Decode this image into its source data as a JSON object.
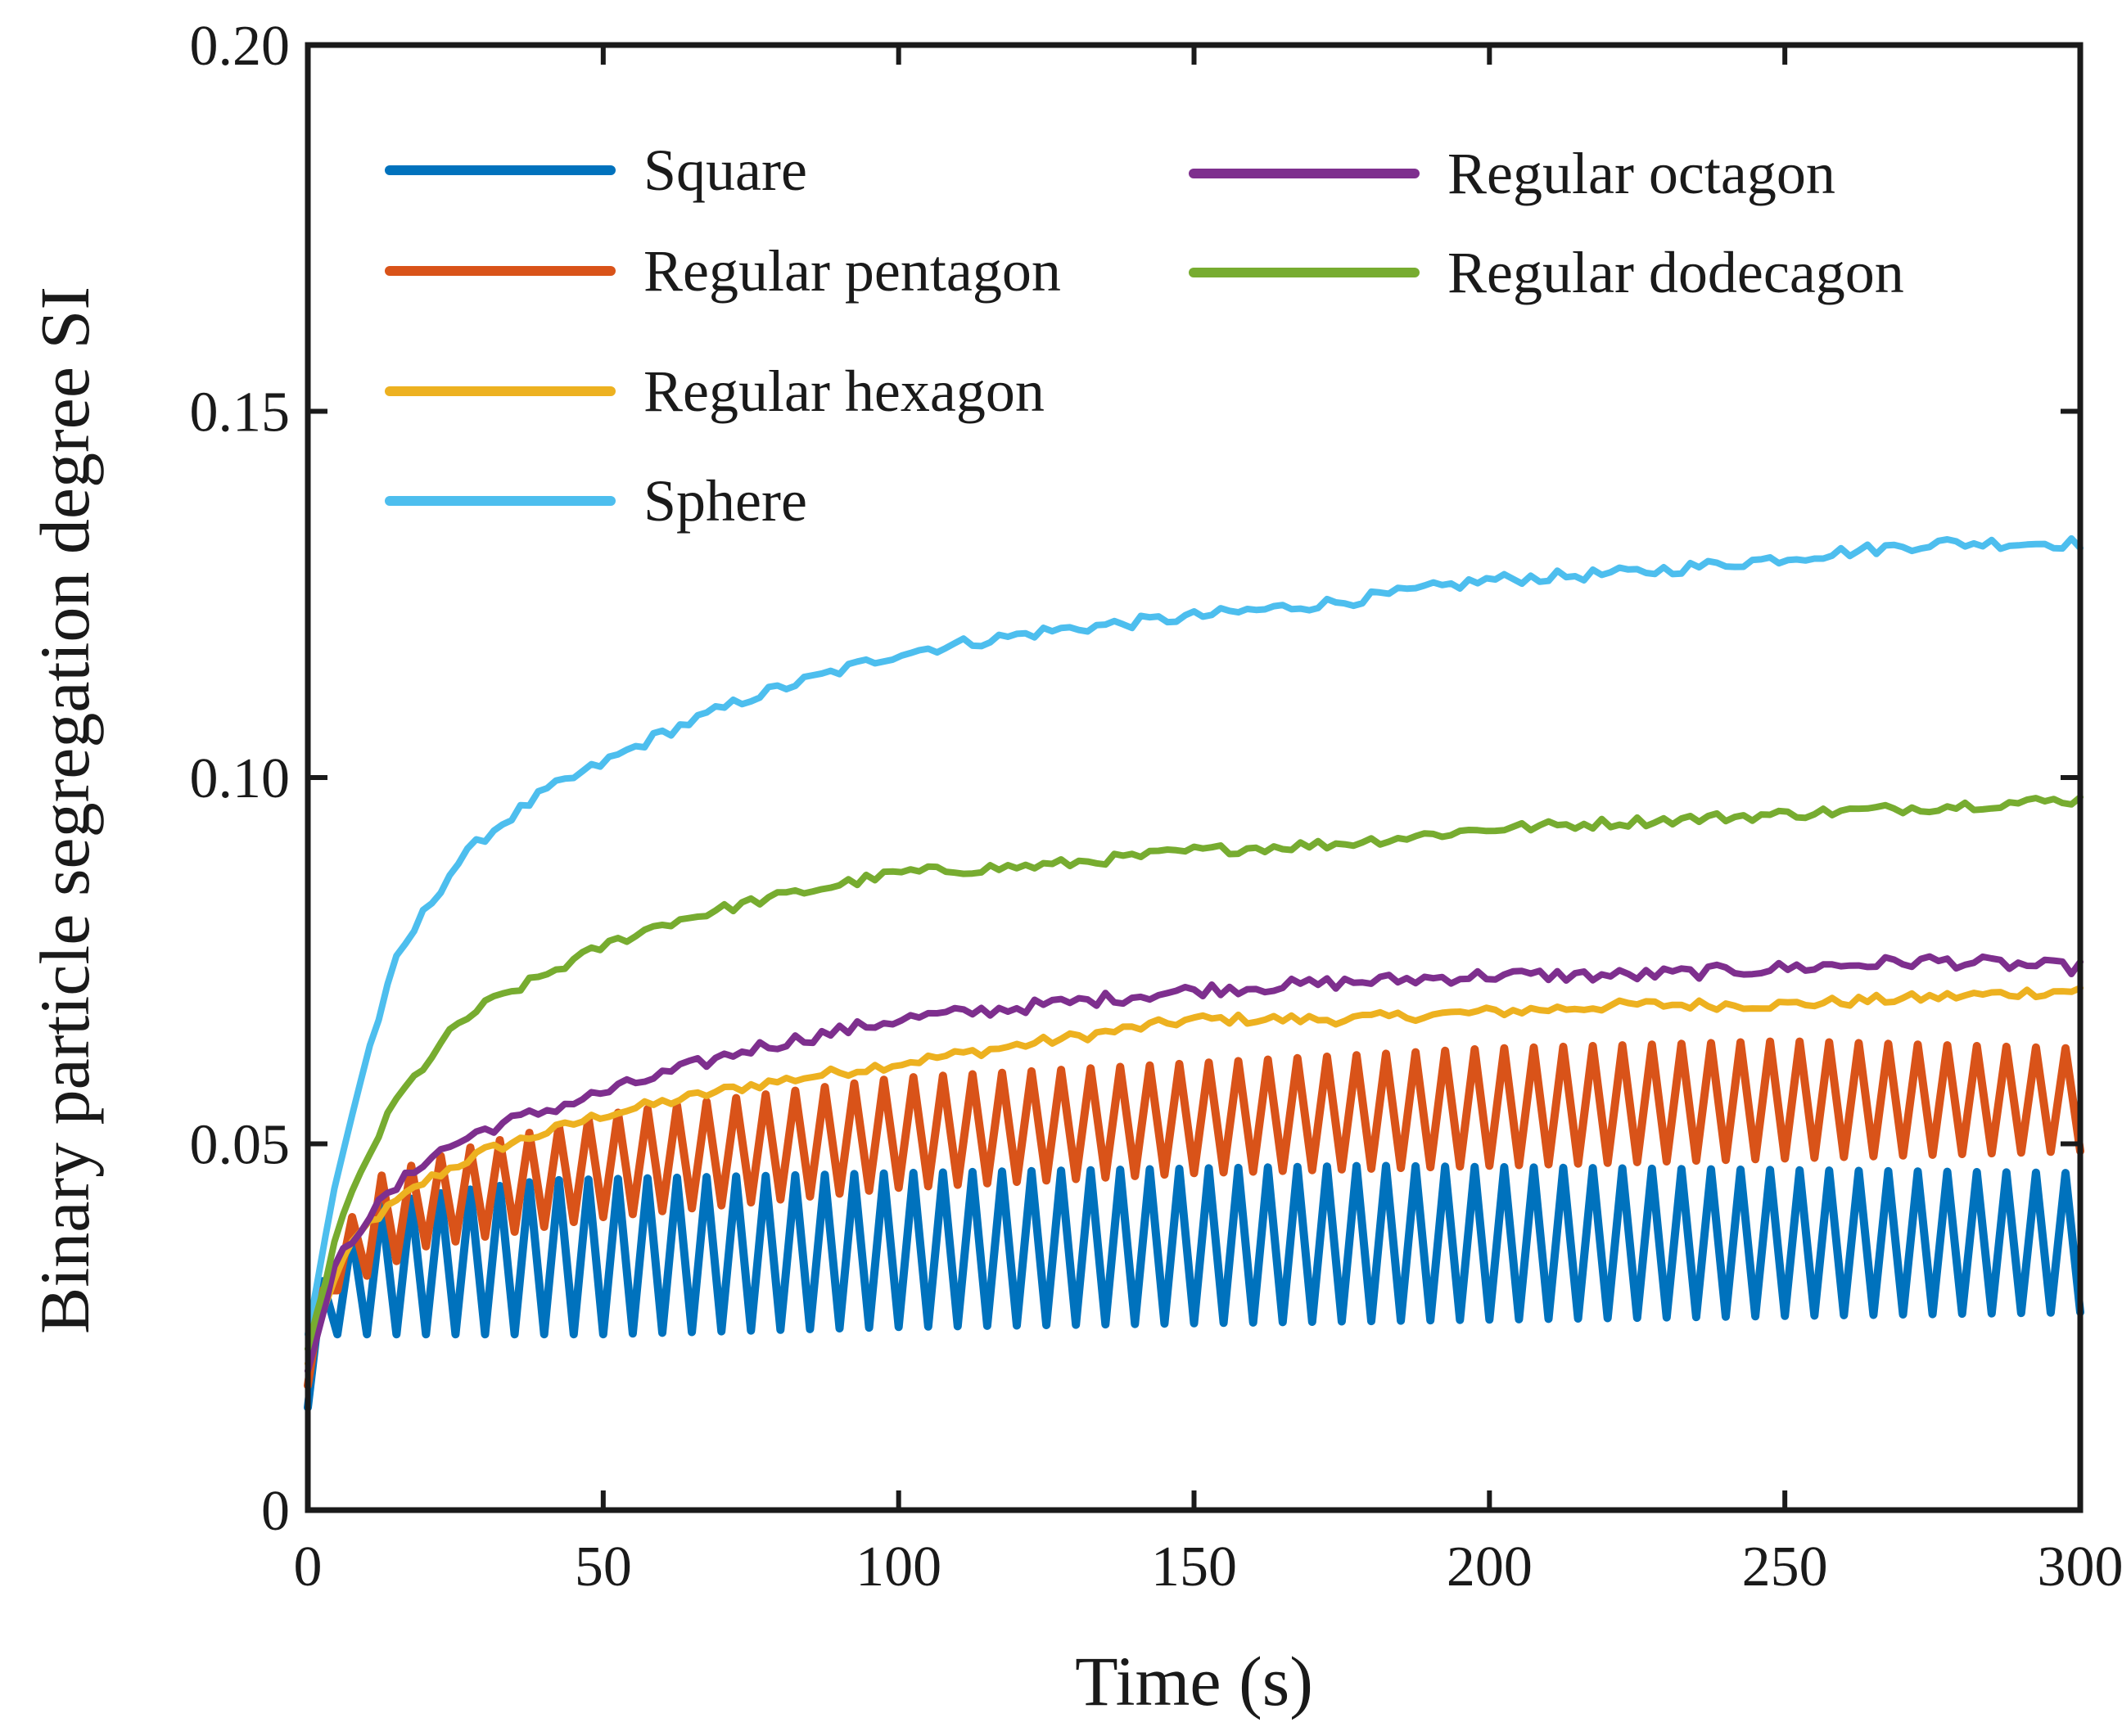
{
  "chart_data": {
    "type": "line",
    "title": "",
    "xlabel": "Time (s)",
    "ylabel": "Binary particle segregation degree SI",
    "xlim": [
      0,
      300
    ],
    "ylim": [
      0,
      0.2
    ],
    "xticks": [
      0,
      50,
      100,
      150,
      200,
      250,
      300
    ],
    "xtick_labels": [
      "0",
      "50",
      "100",
      "150",
      "200",
      "250",
      "300"
    ],
    "yticks": [
      0,
      0.05,
      0.1,
      0.15,
      0.2
    ],
    "ytick_labels": [
      "0",
      "0.05",
      "0.10",
      "0.15",
      "0.20"
    ],
    "grid": false,
    "legend_position": "top-left",
    "legend_columns": 2,
    "series": [
      {
        "name": "Square",
        "color": "#0072BD",
        "pattern": "oscillating",
        "period": 5,
        "x_range": [
          0,
          300
        ],
        "start": 0.014,
        "upper_envelope": [
          [
            0,
            0.028
          ],
          [
            10,
            0.041
          ],
          [
            20,
            0.043
          ],
          [
            40,
            0.045
          ],
          [
            100,
            0.046
          ],
          [
            180,
            0.047
          ],
          [
            300,
            0.046
          ]
        ],
        "lower_envelope": [
          [
            0,
            0.014
          ],
          [
            5,
            0.024
          ],
          [
            50,
            0.024
          ],
          [
            100,
            0.025
          ],
          [
            200,
            0.026
          ],
          [
            300,
            0.027
          ]
        ]
      },
      {
        "name": "Regular pentagon",
        "color": "#D95319",
        "pattern": "oscillating",
        "period": 5,
        "x_range": [
          0,
          300
        ],
        "start": 0.017,
        "upper_envelope": [
          [
            0,
            0.025
          ],
          [
            10,
            0.045
          ],
          [
            25,
            0.049
          ],
          [
            50,
            0.054
          ],
          [
            100,
            0.059
          ],
          [
            150,
            0.061
          ],
          [
            200,
            0.063
          ],
          [
            250,
            0.064
          ],
          [
            300,
            0.063
          ]
        ],
        "lower_envelope": [
          [
            0,
            0.017
          ],
          [
            5,
            0.03
          ],
          [
            20,
            0.036
          ],
          [
            50,
            0.04
          ],
          [
            100,
            0.044
          ],
          [
            150,
            0.046
          ],
          [
            200,
            0.047
          ],
          [
            250,
            0.048
          ],
          [
            300,
            0.049
          ]
        ]
      },
      {
        "name": "Regular hexagon",
        "color": "#EDB120",
        "pattern": "noisy",
        "step": 1.5,
        "noise": 0.0007,
        "x_range": [
          0,
          300
        ],
        "points": [
          [
            0,
            0.02
          ],
          [
            5,
            0.033
          ],
          [
            10,
            0.039
          ],
          [
            20,
            0.045
          ],
          [
            30,
            0.049
          ],
          [
            50,
            0.054
          ],
          [
            75,
            0.058
          ],
          [
            100,
            0.061
          ],
          [
            125,
            0.064
          ],
          [
            150,
            0.067
          ],
          [
            175,
            0.067
          ],
          [
            200,
            0.068
          ],
          [
            225,
            0.069
          ],
          [
            250,
            0.069
          ],
          [
            275,
            0.07
          ],
          [
            300,
            0.071
          ]
        ]
      },
      {
        "name": "Sphere",
        "color": "#4DBEEE",
        "pattern": "noisy",
        "step": 1.5,
        "noise": 0.0008,
        "x_range": [
          0,
          300
        ],
        "points": [
          [
            0,
            0.024
          ],
          [
            5,
            0.046
          ],
          [
            10,
            0.062
          ],
          [
            15,
            0.075
          ],
          [
            20,
            0.082
          ],
          [
            25,
            0.088
          ],
          [
            30,
            0.092
          ],
          [
            40,
            0.098
          ],
          [
            50,
            0.102
          ],
          [
            60,
            0.106
          ],
          [
            75,
            0.111
          ],
          [
            100,
            0.117
          ],
          [
            125,
            0.12
          ],
          [
            150,
            0.122
          ],
          [
            175,
            0.124
          ],
          [
            200,
            0.127
          ],
          [
            225,
            0.128
          ],
          [
            250,
            0.13
          ],
          [
            275,
            0.132
          ],
          [
            300,
            0.132
          ]
        ]
      },
      {
        "name": "Regular octagon",
        "color": "#7E2F8E",
        "pattern": "noisy",
        "step": 1.5,
        "noise": 0.0009,
        "x_range": [
          0,
          300
        ],
        "points": [
          [
            0,
            0.019
          ],
          [
            5,
            0.034
          ],
          [
            10,
            0.04
          ],
          [
            20,
            0.048
          ],
          [
            30,
            0.052
          ],
          [
            50,
            0.057
          ],
          [
            75,
            0.063
          ],
          [
            100,
            0.067
          ],
          [
            125,
            0.069
          ],
          [
            150,
            0.071
          ],
          [
            175,
            0.072
          ],
          [
            200,
            0.073
          ],
          [
            225,
            0.073
          ],
          [
            250,
            0.074
          ],
          [
            275,
            0.075
          ],
          [
            300,
            0.074
          ]
        ]
      },
      {
        "name": "Regular dodecagon",
        "color": "#77AC30",
        "pattern": "noisy",
        "step": 1.5,
        "noise": 0.0007,
        "x_range": [
          0,
          300
        ],
        "points": [
          [
            0,
            0.022
          ],
          [
            5,
            0.038
          ],
          [
            10,
            0.048
          ],
          [
            15,
            0.056
          ],
          [
            20,
            0.061
          ],
          [
            25,
            0.066
          ],
          [
            30,
            0.069
          ],
          [
            40,
            0.073
          ],
          [
            50,
            0.077
          ],
          [
            60,
            0.08
          ],
          [
            75,
            0.083
          ],
          [
            100,
            0.087
          ],
          [
            125,
            0.088
          ],
          [
            150,
            0.09
          ],
          [
            175,
            0.091
          ],
          [
            200,
            0.093
          ],
          [
            225,
            0.094
          ],
          [
            250,
            0.095
          ],
          [
            275,
            0.096
          ],
          [
            300,
            0.097
          ]
        ]
      }
    ]
  }
}
